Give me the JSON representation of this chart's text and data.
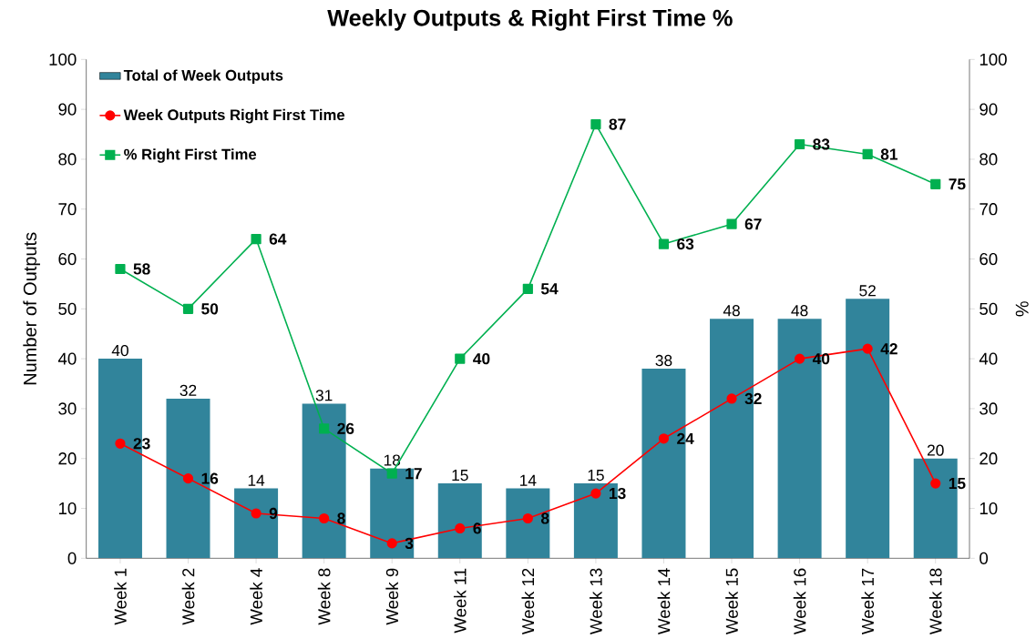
{
  "chart_data": {
    "type": "bar",
    "title": "Weekly Outputs & Right First Time %",
    "ylabel": "Number of Outputs",
    "y2label": "%",
    "categories": [
      "Week 1",
      "Week 2",
      "Week 4",
      "Week 8",
      "Week 9",
      "Week 11",
      "Week 12",
      "Week 13",
      "Week 14",
      "Week 15",
      "Week 16",
      "Week 17",
      "Week 18"
    ],
    "series": [
      {
        "name": "Total of Week Outputs",
        "color": "#31849b",
        "values": [
          40,
          32,
          14,
          31,
          18,
          15,
          14,
          15,
          38,
          48,
          48,
          52,
          20
        ]
      },
      {
        "name": "Week Outputs Right First Time",
        "type": "line",
        "color": "#ff0000",
        "marker": "circle",
        "values": [
          23,
          16,
          9,
          8,
          3,
          6,
          8,
          13,
          24,
          32,
          40,
          42,
          15
        ]
      },
      {
        "name": "% Right First Time",
        "type": "line",
        "color": "#00b050",
        "marker": "square",
        "axis": "y2",
        "values": [
          58,
          50,
          64,
          26,
          17,
          40,
          54,
          87,
          63,
          67,
          83,
          81,
          75
        ]
      }
    ],
    "ylim": [
      0,
      100
    ],
    "yticks": [
      0,
      10,
      20,
      30,
      40,
      50,
      60,
      70,
      80,
      90,
      100
    ],
    "y2lim": [
      0,
      100
    ],
    "y2ticks": [
      0,
      10,
      20,
      30,
      40,
      50,
      60,
      70,
      80,
      90,
      100
    ],
    "data_labels": true,
    "legend": "top left",
    "grid": false
  }
}
